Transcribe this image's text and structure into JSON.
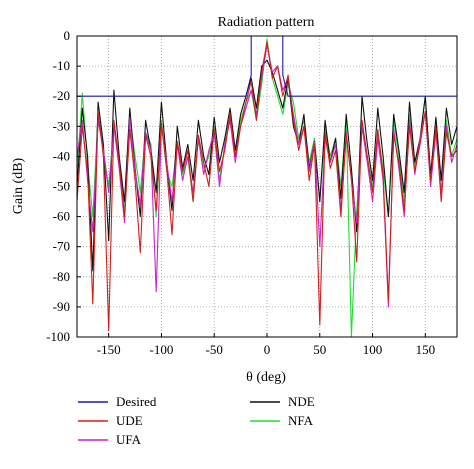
{
  "chart_data": {
    "type": "line",
    "title": "Radiation pattern",
    "xlabel": "θ (deg)",
    "ylabel": "Gain (dB)",
    "xlim": [
      -180,
      180
    ],
    "ylim": [
      -100,
      0
    ],
    "xticks": [
      -150,
      -100,
      -50,
      0,
      50,
      100,
      150
    ],
    "yticks": [
      0,
      -10,
      -20,
      -30,
      -40,
      -50,
      -60,
      -70,
      -80,
      -90,
      -100
    ],
    "grid": true,
    "grid_style": "dotted",
    "legend_position": "bottom",
    "series": [
      {
        "name": "Desired",
        "color": "#1a1aa6",
        "x": [
          -180,
          -90,
          -90,
          -20,
          -20,
          -15,
          -15,
          15,
          15,
          20,
          20,
          90,
          90,
          180
        ],
        "y": [
          -20,
          -20,
          -20,
          -20,
          -20,
          -13,
          0,
          0,
          -13,
          -20,
          -20,
          -20,
          -20,
          -20
        ]
      },
      {
        "name": "UDE",
        "color": "#d0201a",
        "x": [
          -180,
          -175,
          -170,
          -165,
          -160,
          -155,
          -150,
          -145,
          -140,
          -135,
          -130,
          -125,
          -120,
          -115,
          -110,
          -105,
          -100,
          -95,
          -90,
          -85,
          -80,
          -75,
          -70,
          -65,
          -60,
          -55,
          -50,
          -45,
          -40,
          -35,
          -30,
          -25,
          -20,
          -15,
          -10,
          -5,
          0,
          5,
          10,
          15,
          20,
          25,
          30,
          35,
          40,
          45,
          50,
          55,
          60,
          65,
          70,
          75,
          80,
          85,
          90,
          95,
          100,
          105,
          110,
          115,
          120,
          125,
          130,
          135,
          140,
          145,
          150,
          155,
          160,
          165,
          170,
          175,
          180
        ],
        "y": [
          -55,
          -30,
          -45,
          -89,
          -25,
          -40,
          -98,
          -28,
          -42,
          -60,
          -31,
          -48,
          -72,
          -33,
          -40,
          -58,
          -29,
          -44,
          -66,
          -35,
          -45,
          -38,
          -55,
          -33,
          -42,
          -50,
          -31,
          -45,
          -38,
          -26,
          -40,
          -30,
          -22,
          -15,
          -28,
          -12,
          -2,
          -14,
          -10,
          -20,
          -13,
          -28,
          -38,
          -30,
          -48,
          -36,
          -96,
          -32,
          -44,
          -38,
          -60,
          -33,
          -47,
          -75,
          -28,
          -40,
          -52,
          -31,
          -46,
          -88,
          -33,
          -42,
          -58,
          -30,
          -45,
          -36,
          -25,
          -48,
          -30,
          -55,
          -32,
          -40,
          -38
        ]
      },
      {
        "name": "UFA",
        "color": "#cc22cc",
        "x": [
          -180,
          -175,
          -170,
          -165,
          -160,
          -155,
          -150,
          -145,
          -140,
          -135,
          -130,
          -125,
          -120,
          -115,
          -110,
          -105,
          -100,
          -95,
          -90,
          -85,
          -80,
          -75,
          -70,
          -65,
          -60,
          -55,
          -50,
          -45,
          -40,
          -35,
          -30,
          -25,
          -20,
          -15,
          -10,
          -5,
          0,
          5,
          10,
          15,
          20,
          25,
          30,
          35,
          40,
          45,
          50,
          55,
          60,
          65,
          70,
          75,
          80,
          85,
          90,
          95,
          100,
          105,
          110,
          115,
          120,
          125,
          130,
          135,
          140,
          145,
          150,
          155,
          160,
          165,
          170,
          175,
          180
        ],
        "y": [
          -40,
          -28,
          -48,
          -65,
          -28,
          -38,
          -52,
          -30,
          -44,
          -62,
          -27,
          -45,
          -56,
          -32,
          -38,
          -85,
          -30,
          -42,
          -55,
          -36,
          -48,
          -40,
          -52,
          -34,
          -46,
          -38,
          -32,
          -50,
          -36,
          -28,
          -42,
          -30,
          -24,
          -18,
          -26,
          -14,
          -3,
          -12,
          -10,
          -18,
          -14,
          -26,
          -36,
          -30,
          -45,
          -35,
          -70,
          -34,
          -42,
          -36,
          -58,
          -32,
          -48,
          -62,
          -30,
          -42,
          -55,
          -34,
          -48,
          -90,
          -31,
          -44,
          -60,
          -28,
          -46,
          -34,
          -25,
          -50,
          -32,
          -53,
          -30,
          -42,
          -36
        ]
      },
      {
        "name": "NDE",
        "color": "#111111",
        "x": [
          -180,
          -175,
          -170,
          -165,
          -160,
          -155,
          -150,
          -145,
          -140,
          -135,
          -130,
          -125,
          -120,
          -115,
          -110,
          -105,
          -100,
          -95,
          -90,
          -85,
          -80,
          -75,
          -70,
          -65,
          -60,
          -55,
          -50,
          -45,
          -40,
          -35,
          -30,
          -25,
          -20,
          -15,
          -10,
          -5,
          0,
          5,
          10,
          15,
          20,
          25,
          30,
          35,
          40,
          45,
          50,
          55,
          60,
          65,
          70,
          75,
          80,
          85,
          90,
          95,
          100,
          105,
          110,
          115,
          120,
          125,
          130,
          135,
          140,
          145,
          150,
          155,
          160,
          165,
          170,
          175,
          180
        ],
        "y": [
          -50,
          -24,
          -40,
          -78,
          -22,
          -36,
          -68,
          -18,
          -40,
          -55,
          -24,
          -44,
          -60,
          -28,
          -38,
          -52,
          -22,
          -42,
          -58,
          -30,
          -44,
          -36,
          -48,
          -28,
          -40,
          -46,
          -27,
          -42,
          -34,
          -24,
          -38,
          -26,
          -20,
          -14,
          -24,
          -10,
          -8,
          -12,
          -18,
          -24,
          -14,
          -30,
          -36,
          -26,
          -44,
          -35,
          -55,
          -28,
          -42,
          -34,
          -54,
          -26,
          -44,
          -65,
          -20,
          -36,
          -48,
          -24,
          -40,
          -60,
          -26,
          -38,
          -52,
          -22,
          -42,
          -34,
          -20,
          -46,
          -27,
          -48,
          -24,
          -36,
          -30
        ]
      },
      {
        "name": "NFA",
        "color": "#22dd33",
        "x": [
          -180,
          -175,
          -170,
          -165,
          -160,
          -155,
          -150,
          -145,
          -140,
          -135,
          -130,
          -125,
          -120,
          -115,
          -110,
          -105,
          -100,
          -95,
          -90,
          -85,
          -80,
          -75,
          -70,
          -65,
          -60,
          -55,
          -50,
          -45,
          -40,
          -35,
          -30,
          -25,
          -20,
          -15,
          -10,
          -5,
          0,
          5,
          10,
          15,
          20,
          25,
          30,
          35,
          40,
          45,
          50,
          55,
          60,
          65,
          70,
          75,
          80,
          85,
          90,
          95,
          100,
          105,
          110,
          115,
          120,
          125,
          130,
          135,
          140,
          145,
          150,
          155,
          160,
          165,
          170,
          175,
          180
        ],
        "y": [
          -45,
          -19,
          -42,
          -60,
          -26,
          -38,
          -50,
          -30,
          -42,
          -58,
          -27,
          -40,
          -52,
          -32,
          -36,
          -60,
          -28,
          -45,
          -50,
          -36,
          -46,
          -40,
          -55,
          -34,
          -44,
          -40,
          -30,
          -48,
          -36,
          -26,
          -40,
          -28,
          -22,
          -18,
          -28,
          -16,
          -1,
          -14,
          -20,
          -26,
          -16,
          -22,
          -34,
          -28,
          -42,
          -34,
          -55,
          -30,
          -40,
          -34,
          -50,
          -28,
          -100,
          -58,
          -30,
          -40,
          -50,
          -32,
          -44,
          -60,
          -28,
          -40,
          -55,
          -26,
          -44,
          -34,
          -20,
          -48,
          -30,
          -52,
          -28,
          -40,
          -34
        ]
      }
    ]
  }
}
